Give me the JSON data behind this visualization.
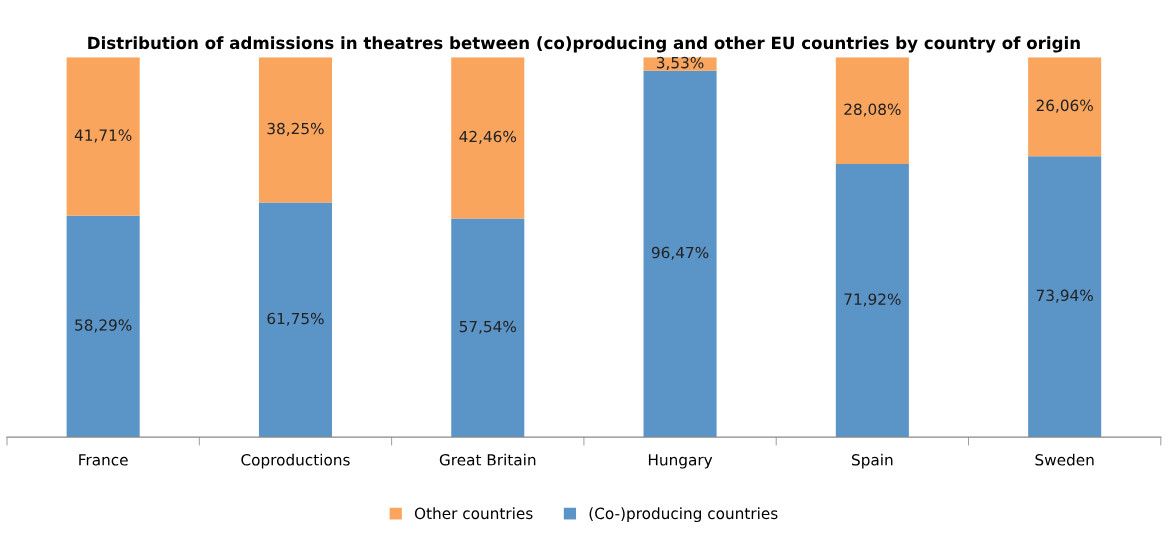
{
  "chart_data": {
    "type": "bar",
    "stacked": true,
    "title": "Distribution of admissions in theatres between (co)producing and other EU countries by country of origin",
    "categories": [
      "France",
      "Coproductions",
      "Great Britain",
      "Hungary",
      "Spain",
      "Sweden"
    ],
    "series": [
      {
        "name": "(Co-)producing countries",
        "color": "#5b95c8",
        "values": [
          58.29,
          61.75,
          57.54,
          96.47,
          71.92,
          73.94
        ],
        "value_labels": [
          "58,29%",
          "61,75%",
          "57,54%",
          "96,47%",
          "71,92%",
          "73,94%"
        ]
      },
      {
        "name": "Other countries",
        "color": "#f9a55e",
        "values": [
          41.71,
          38.25,
          42.46,
          3.53,
          28.08,
          26.06
        ],
        "value_labels": [
          "41,71%",
          "38,25%",
          "42,46%",
          "3,53%",
          "28,08%",
          "26,06%"
        ]
      }
    ],
    "legend": "bottom",
    "grid": false,
    "tick_labels": "x"
  }
}
